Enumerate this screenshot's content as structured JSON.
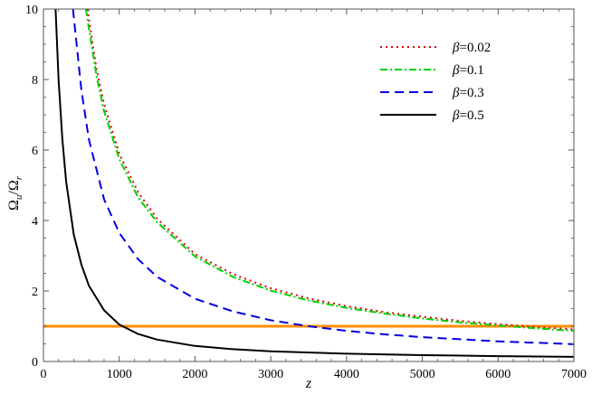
{
  "chart_data": {
    "type": "line",
    "title": "",
    "xlabel": "z",
    "ylabel": "Ωu/Ωr",
    "ylabel_parts": {
      "main1": "Ω",
      "sub1": "u",
      "sep": "/",
      "main2": "Ω",
      "sub2": "r"
    },
    "xlim": [
      0,
      7000
    ],
    "ylim": [
      0,
      10
    ],
    "xticks": [
      0,
      1000,
      2000,
      3000,
      4000,
      5000,
      6000,
      7000
    ],
    "yticks": [
      0,
      2,
      4,
      6,
      8,
      10
    ],
    "grid": false,
    "legend_position": "top-right",
    "series": [
      {
        "name": "β=0.02",
        "name_symbol": "β",
        "name_value": "=0.02",
        "color": "#e00000",
        "dash": "2,4",
        "x": [
          580,
          700,
          800,
          1000,
          1250,
          1500,
          2000,
          2500,
          3000,
          3500,
          4000,
          4500,
          5000,
          5500,
          6000,
          6500,
          7000
        ],
        "y": [
          10.0,
          8.3,
          7.3,
          5.9,
          4.8,
          4.05,
          3.05,
          2.48,
          2.08,
          1.79,
          1.57,
          1.4,
          1.27,
          1.15,
          1.06,
          0.98,
          0.91
        ]
      },
      {
        "name": "β=0.1",
        "name_symbol": "β",
        "name_value": "=0.1",
        "color": "#00d000",
        "dash": "8,3,2,3",
        "x": [
          560,
          700,
          800,
          1000,
          1250,
          1500,
          2000,
          2500,
          3000,
          3500,
          4000,
          4500,
          5000,
          5500,
          6000,
          6500,
          7000
        ],
        "y": [
          10.0,
          8.1,
          7.1,
          5.75,
          4.65,
          3.95,
          2.98,
          2.4,
          2.01,
          1.73,
          1.52,
          1.36,
          1.22,
          1.11,
          1.02,
          0.94,
          0.87
        ]
      },
      {
        "name": "β=0.3",
        "name_symbol": "β",
        "name_value": "=0.3",
        "color": "#0000e0",
        "dash": "10,6",
        "x": [
          390,
          500,
          600,
          800,
          1000,
          1250,
          1500,
          2000,
          2500,
          3000,
          3500,
          4000,
          4500,
          5000,
          5500,
          6000,
          6500,
          7000
        ],
        "y": [
          10.0,
          7.7,
          6.3,
          4.6,
          3.65,
          2.9,
          2.4,
          1.78,
          1.42,
          1.17,
          1.0,
          0.87,
          0.77,
          0.69,
          0.63,
          0.57,
          0.53,
          0.49
        ]
      },
      {
        "name": "β=0.5",
        "name_symbol": "β",
        "name_value": "=0.5",
        "color": "#000000",
        "dash": "",
        "x": [
          160,
          200,
          250,
          300,
          400,
          500,
          600,
          800,
          1000,
          1250,
          1500,
          2000,
          2500,
          3000,
          4000,
          5000,
          6000,
          7000
        ],
        "y": [
          10.0,
          8.0,
          6.3,
          5.1,
          3.6,
          2.75,
          2.15,
          1.45,
          1.05,
          0.78,
          0.62,
          0.44,
          0.35,
          0.29,
          0.22,
          0.18,
          0.15,
          0.13
        ]
      }
    ],
    "reference_line": {
      "y": 1,
      "color": "#ff8c00"
    }
  }
}
